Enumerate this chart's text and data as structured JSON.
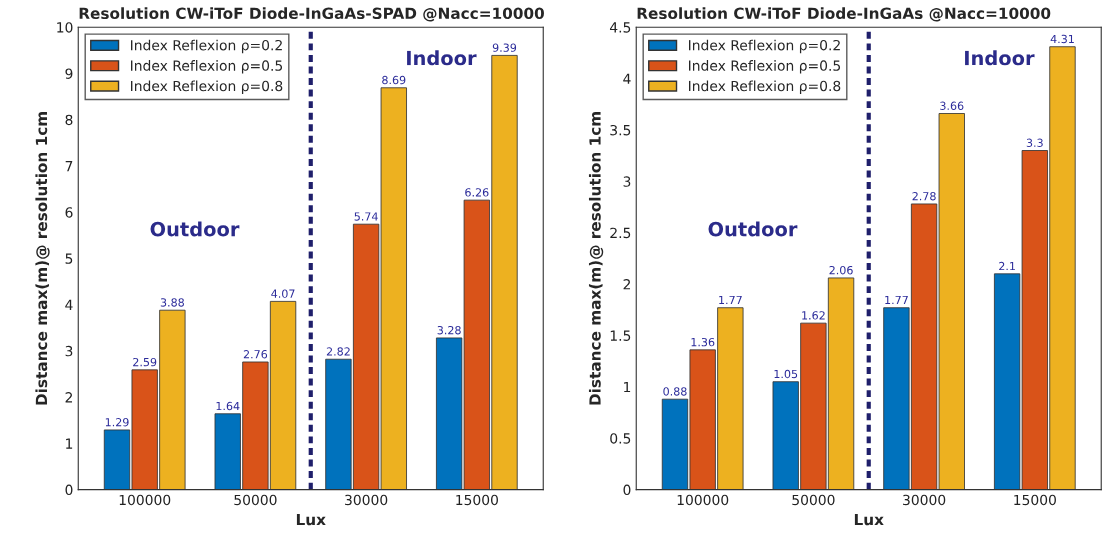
{
  "chart_data": [
    {
      "type": "bar",
      "title": "Resolution CW-iToF Diode-InGaAs-SPAD @Nacc=10000",
      "xlabel": "Lux",
      "ylabel": "Distance max(m)@ resolution 1cm",
      "categories": [
        "100000",
        "50000",
        "30000",
        "15000"
      ],
      "series": [
        {
          "name": "Index Reflexion ρ=0.2",
          "color": "#0072bd",
          "values": [
            1.29,
            1.64,
            2.82,
            3.28
          ]
        },
        {
          "name": "Index Reflexion ρ=0.5",
          "color": "#d95319",
          "values": [
            2.59,
            2.76,
            5.74,
            6.26
          ]
        },
        {
          "name": "Index Reflexion ρ=0.8",
          "color": "#edb120",
          "values": [
            3.88,
            4.07,
            8.69,
            9.39
          ]
        }
      ],
      "ylim": [
        0,
        10
      ],
      "yticks": [
        0,
        1,
        2,
        3,
        4,
        5,
        6,
        7,
        8,
        9,
        10
      ],
      "data_labels": true,
      "legend": "top left",
      "annotations": [
        "Outdoor",
        "Indoor"
      ]
    },
    {
      "type": "bar",
      "title": "Resolution CW-iToF Diode-InGaAs @Nacc=10000",
      "xlabel": "Lux",
      "ylabel": "Distance max(m)@ resolution 1cm",
      "categories": [
        "100000",
        "50000",
        "30000",
        "15000"
      ],
      "series": [
        {
          "name": "Index Reflexion ρ=0.2",
          "color": "#0072bd",
          "values": [
            0.88,
            1.05,
            1.77,
            2.1
          ]
        },
        {
          "name": "Index Reflexion ρ=0.5",
          "color": "#d95319",
          "values": [
            1.36,
            1.62,
            2.78,
            3.3
          ]
        },
        {
          "name": "Index Reflexion ρ=0.8",
          "color": "#edb120",
          "values": [
            1.77,
            2.06,
            3.66,
            4.31
          ]
        }
      ],
      "ylim": [
        0,
        4.5
      ],
      "yticks": [
        0,
        0.5,
        1,
        1.5,
        2,
        2.5,
        3,
        3.5,
        4,
        4.5
      ],
      "data_labels": true,
      "legend": "top left",
      "annotations": [
        "Outdoor",
        "Indoor"
      ]
    }
  ]
}
